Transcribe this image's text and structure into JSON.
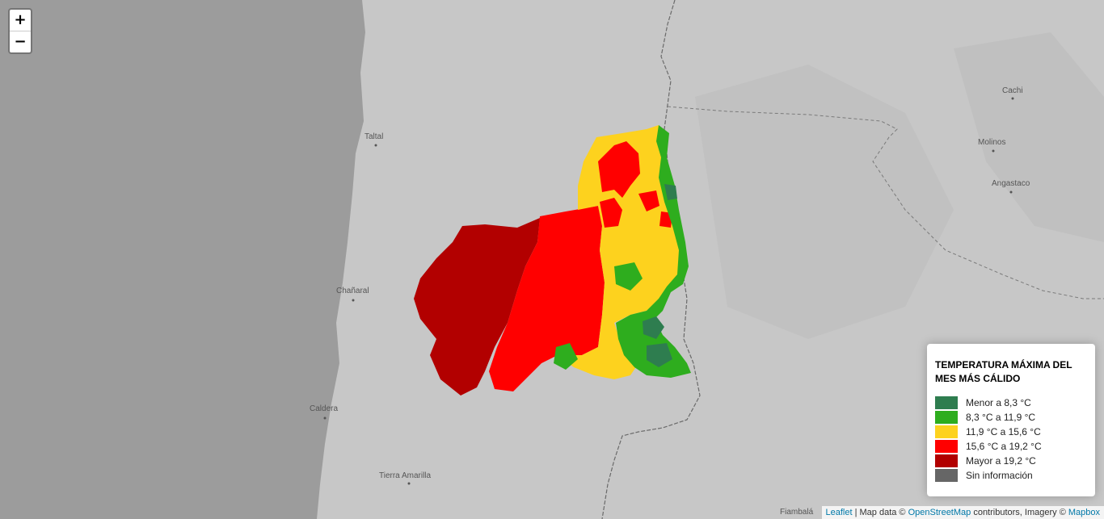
{
  "zoom": {
    "in_label": "+",
    "out_label": "−"
  },
  "places": [
    {
      "name": "Taltal"
    },
    {
      "name": "Chañaral"
    },
    {
      "name": "Caldera"
    },
    {
      "name": "Tierra Amarilla"
    },
    {
      "name": "Cachi"
    },
    {
      "name": "Molinos"
    },
    {
      "name": "Angastaco"
    },
    {
      "name": "Fiambalá"
    }
  ],
  "legend": {
    "title": "TEMPERATURA MÁXIMA DEL MES MÁS CÁLIDO",
    "items": [
      {
        "label": "Menor a 8,3 °C",
        "color": "#2e7d4f"
      },
      {
        "label": "8,3 °C a 11,9 °C",
        "color": "#2ead1e"
      },
      {
        "label": "11,9 °C a 15,6 °C",
        "color": "#fdd21e"
      },
      {
        "label": "15,6 °C a 19,2 °C",
        "color": "#ff0000"
      },
      {
        "label": "Mayor a 19,2 °C",
        "color": "#b20000"
      },
      {
        "label": "Sin información",
        "color": "#666666"
      }
    ]
  },
  "attribution": {
    "leaflet": "Leaflet",
    "sep": " | Map data © ",
    "osm": "OpenStreetMap",
    "mid": " contributors, Imagery © ",
    "mapbox": "Mapbox"
  },
  "colors": {
    "sea": "#9c9c9c",
    "land": "#c7c7c7",
    "border": "#6a6a6a"
  }
}
